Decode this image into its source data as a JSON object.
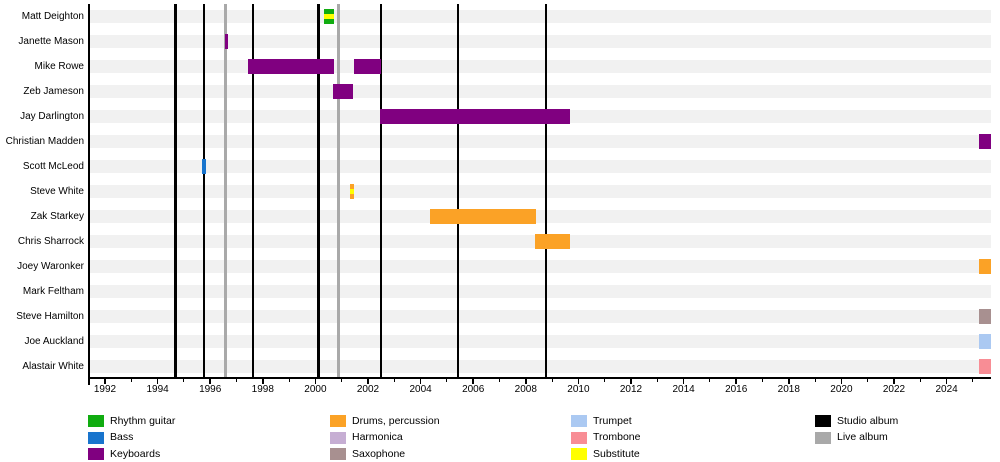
{
  "chart_data": {
    "type": "bar",
    "variant": "gantt-member-timeline",
    "description": "Band members tenure timeline with studio and live album release markers",
    "x_axis": {
      "major_tick_years": [
        1992,
        1994,
        1996,
        1998,
        2000,
        2002,
        2004,
        2006,
        2008,
        2010,
        2012,
        2014,
        2016,
        2018,
        2020,
        2022,
        2024
      ],
      "minor_tick_years": [
        1993,
        1995,
        1997,
        1999,
        2001,
        2003,
        2005,
        2007,
        2009,
        2011,
        2013,
        2015,
        2017,
        2019,
        2021,
        2023,
        2025
      ],
      "xlim_years": [
        1991.35,
        2025.7
      ]
    },
    "rows": [
      {
        "name": "Matt Deighton",
        "bars": [
          {
            "start": 2000.33,
            "end": 2000.71,
            "role": "rhythm_guitar",
            "substitute": true
          }
        ]
      },
      {
        "name": "Janette Mason",
        "bars": [
          {
            "start": 1996.58,
            "end": 1996.68,
            "role": "keyboards",
            "substitute": false
          }
        ]
      },
      {
        "name": "Mike Rowe",
        "bars": [
          {
            "start": 1997.44,
            "end": 2000.71,
            "role": "keyboards",
            "substitute": false
          },
          {
            "start": 2001.47,
            "end": 2002.49,
            "role": "keyboards",
            "substitute": false
          }
        ]
      },
      {
        "name": "Zeb Jameson",
        "bars": [
          {
            "start": 2000.67,
            "end": 2001.43,
            "role": "keyboards",
            "substitute": false
          }
        ]
      },
      {
        "name": "Jay Darlington",
        "bars": [
          {
            "start": 2002.46,
            "end": 2009.68,
            "role": "keyboards",
            "substitute": false
          }
        ]
      },
      {
        "name": "Christian Madden",
        "bars": [
          {
            "start": 2025.24,
            "end": 2025.69,
            "role": "keyboards",
            "substitute": false
          }
        ]
      },
      {
        "name": "Scott McLeod",
        "bars": [
          {
            "start": 1995.67,
            "end": 1995.84,
            "role": "bass",
            "substitute": false
          }
        ]
      },
      {
        "name": "Steve White",
        "bars": [
          {
            "start": 2001.32,
            "end": 2001.45,
            "role": "drums",
            "substitute": true
          }
        ]
      },
      {
        "name": "Zak Starkey",
        "bars": [
          {
            "start": 2004.36,
            "end": 2008.39,
            "role": "drums",
            "substitute": false
          }
        ]
      },
      {
        "name": "Chris Sharrock",
        "bars": [
          {
            "start": 2008.35,
            "end": 2009.68,
            "role": "drums",
            "substitute": false
          }
        ]
      },
      {
        "name": "Joey Waronker",
        "bars": [
          {
            "start": 2025.24,
            "end": 2025.69,
            "role": "drums",
            "substitute": false
          }
        ]
      },
      {
        "name": "Mark Feltham",
        "bars": []
      },
      {
        "name": "Steve Hamilton",
        "bars": [
          {
            "start": 2025.24,
            "end": 2025.69,
            "role": "saxophone",
            "substitute": false
          }
        ]
      },
      {
        "name": "Joe Auckland",
        "bars": [
          {
            "start": 2025.24,
            "end": 2025.69,
            "role": "trumpet",
            "substitute": false
          }
        ]
      },
      {
        "name": "Alastair White",
        "bars": [
          {
            "start": 2025.24,
            "end": 2025.69,
            "role": "trombone",
            "substitute": false
          }
        ]
      }
    ],
    "events": {
      "studio_albums": [
        1994.68,
        1995.76,
        1997.63,
        2000.12,
        2002.49,
        2005.42,
        2008.77
      ],
      "live_albums": [
        1996.58,
        2000.88
      ]
    },
    "colors": {
      "rhythm_guitar": "#10AC10",
      "bass": "#1874CD",
      "keyboards": "#800080",
      "drums": "#FBA226",
      "harmonica": "#C6AED3",
      "saxophone": "#A89090",
      "trumpet": "#ABC9F2",
      "trombone": "#F88D95",
      "substitute": "#FFFF00",
      "studio_album": "#000000",
      "live_album": "#A9A9A9",
      "row_stripe": "#F1F1F1"
    },
    "legend": {
      "columns": [
        [
          {
            "label": "Rhythm guitar",
            "color": "rhythm_guitar"
          },
          {
            "label": "Bass",
            "color": "bass"
          },
          {
            "label": "Keyboards",
            "color": "keyboards"
          }
        ],
        [
          {
            "label": "Drums, percussion",
            "color": "drums"
          },
          {
            "label": "Harmonica",
            "color": "harmonica"
          },
          {
            "label": "Saxophone",
            "color": "saxophone"
          }
        ],
        [
          {
            "label": "Trumpet",
            "color": "trumpet"
          },
          {
            "label": "Trombone",
            "color": "trombone"
          },
          {
            "label": "Substitute",
            "color": "substitute"
          }
        ],
        [
          {
            "label": "Studio album",
            "color": "studio_album"
          },
          {
            "label": "Live album",
            "color": "live_album"
          }
        ]
      ]
    }
  }
}
